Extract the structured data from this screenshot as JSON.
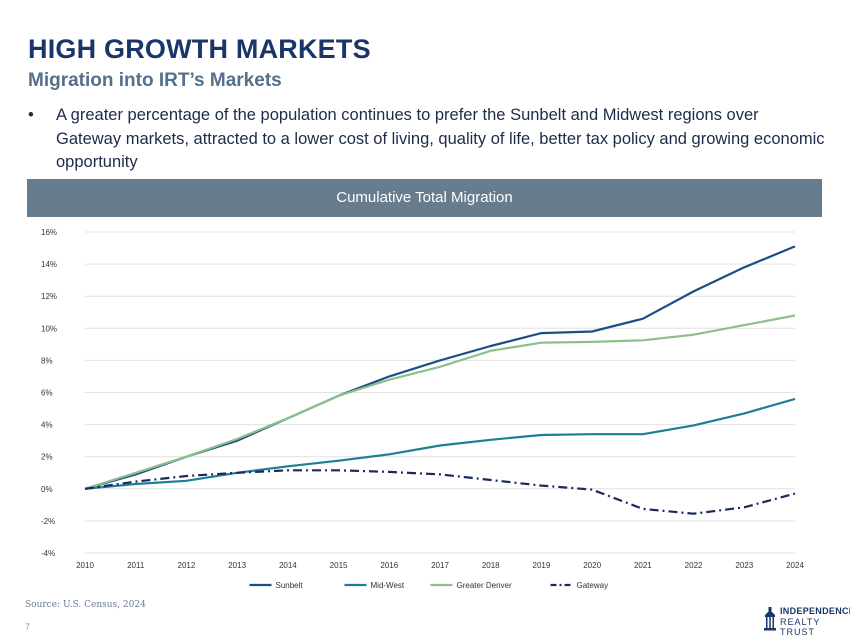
{
  "header": {
    "title": "HIGH GROWTH MARKETS",
    "subtitle": "Migration into IRT’s Markets",
    "bullet_symbol": "•",
    "bullet": "A greater percentage of the population continues to prefer the Sunbelt and Midwest regions over Gateway markets, attracted to a lower cost of living, quality of life, better tax policy and growing economic opportunity"
  },
  "banner": {
    "title": "Cumulative Total Migration"
  },
  "chart_data": {
    "type": "line",
    "title": "Cumulative Total Migration",
    "xlabel": "",
    "ylabel": "",
    "x": [
      "2010",
      "2011",
      "2012",
      "2013",
      "2014",
      "2015",
      "2016",
      "2017",
      "2018",
      "2019",
      "2020",
      "2021",
      "2022",
      "2023",
      "2024"
    ],
    "ylim": [
      -4,
      16
    ],
    "yticks": [
      -4,
      -2,
      0,
      2,
      4,
      6,
      8,
      10,
      12,
      14,
      16
    ],
    "ytick_labels": [
      "-4%",
      "-2%",
      "0%",
      "2%",
      "4%",
      "6%",
      "8%",
      "10%",
      "12%",
      "14%",
      "16%"
    ],
    "grid": true,
    "legend_position": "bottom",
    "series": [
      {
        "name": "Sunbelt",
        "color": "#1d4e89",
        "dash": "solid",
        "values": [
          0,
          0.9,
          2.0,
          3.0,
          4.4,
          5.8,
          7.0,
          8.0,
          8.9,
          9.7,
          9.8,
          10.6,
          12.3,
          13.8,
          15.1
        ]
      },
      {
        "name": "Mid-West",
        "color": "#1e7f94",
        "dash": "solid",
        "values": [
          0,
          0.3,
          0.5,
          1.0,
          1.4,
          1.75,
          2.15,
          2.7,
          3.05,
          3.35,
          3.4,
          3.4,
          3.95,
          4.7,
          5.6
        ]
      },
      {
        "name": "Greater Denver",
        "color": "#8dbf8a",
        "dash": "solid",
        "values": [
          0,
          1.0,
          2.0,
          3.1,
          4.4,
          5.8,
          6.8,
          7.6,
          8.6,
          9.1,
          9.15,
          9.25,
          9.6,
          10.2,
          10.8
        ]
      },
      {
        "name": "Gateway",
        "color": "#1a2a5c",
        "dash": "dashdot",
        "values": [
          0,
          0.45,
          0.8,
          1.0,
          1.15,
          1.15,
          1.05,
          0.9,
          0.55,
          0.2,
          -0.05,
          -1.25,
          -1.55,
          -1.15,
          -0.3
        ]
      }
    ]
  },
  "footer": {
    "source": "Source: U.S. Census, 2024",
    "page_number": "7",
    "logo_line1": "INDEPENDENCE",
    "logo_line2": "REALTY TRUST"
  }
}
